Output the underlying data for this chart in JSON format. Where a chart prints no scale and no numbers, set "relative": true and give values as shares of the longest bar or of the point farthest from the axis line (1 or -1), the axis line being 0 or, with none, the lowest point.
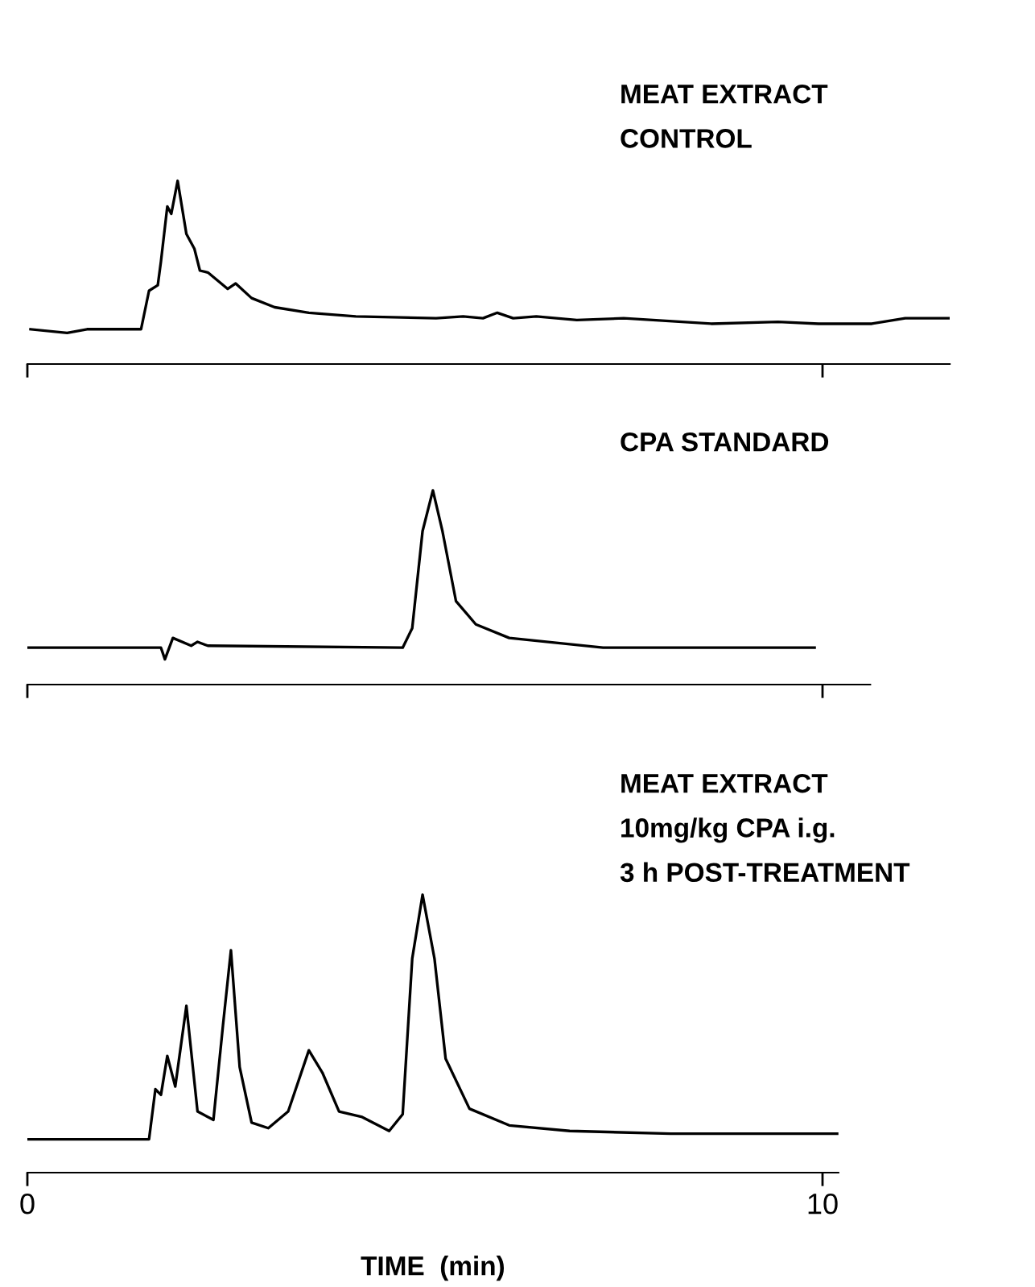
{
  "chart_data": [
    {
      "type": "line",
      "title": "MEAT EXTRACT\nCONTROL",
      "relative": true,
      "color": "#000000",
      "xlim": [
        0,
        11.6
      ],
      "xticks": [
        0,
        10
      ],
      "tick_labels": false,
      "grid": false,
      "legend": false,
      "x": [
        0.04,
        0.5,
        0.75,
        1.43,
        1.53,
        1.64,
        1.68,
        1.76,
        1.81,
        1.89,
        2.0,
        2.1,
        2.17,
        2.27,
        2.52,
        2.62,
        2.82,
        3.11,
        3.54,
        4.13,
        5.14,
        5.48,
        5.73,
        5.91,
        6.11,
        6.4,
        6.91,
        7.5,
        8.6,
        9.44,
        9.95,
        10.62,
        11.04,
        11.6
      ],
      "values": [
        0.19,
        0.17,
        0.19,
        0.19,
        0.4,
        0.43,
        0.56,
        0.86,
        0.82,
        1.0,
        0.71,
        0.63,
        0.51,
        0.5,
        0.41,
        0.44,
        0.36,
        0.31,
        0.28,
        0.26,
        0.25,
        0.26,
        0.25,
        0.28,
        0.25,
        0.26,
        0.24,
        0.25,
        0.22,
        0.23,
        0.22,
        0.22,
        0.25,
        0.25
      ]
    },
    {
      "type": "line",
      "title": "CPA STANDARD",
      "relative": true,
      "color": "#000000",
      "xlim": [
        0,
        10.6
      ],
      "xticks": [
        0,
        10
      ],
      "tick_labels": false,
      "grid": false,
      "legend": false,
      "x": [
        0.0,
        1.68,
        1.73,
        1.83,
        2.06,
        2.14,
        2.27,
        4.72,
        4.84,
        4.97,
        5.1,
        5.22,
        5.39,
        5.64,
        6.06,
        7.24,
        9.9
      ],
      "values": [
        0.19,
        0.19,
        0.13,
        0.24,
        0.2,
        0.22,
        0.2,
        0.19,
        0.29,
        0.79,
        1.0,
        0.79,
        0.43,
        0.31,
        0.24,
        0.19,
        0.19
      ]
    },
    {
      "type": "line",
      "title": "MEAT EXTRACT\n10mg/kg CPA i.g.\n3 h POST-TREATMENT",
      "xlabel": "TIME  (min)",
      "relative": true,
      "color": "#000000",
      "xlim": [
        0,
        10.2
      ],
      "xticks": [
        0,
        10
      ],
      "grid": false,
      "legend": false,
      "x": [
        0.0,
        1.43,
        1.53,
        1.61,
        1.68,
        1.76,
        1.86,
        2.0,
        2.14,
        2.34,
        2.46,
        2.56,
        2.67,
        2.82,
        3.03,
        3.28,
        3.54,
        3.71,
        3.92,
        4.21,
        4.55,
        4.72,
        4.84,
        4.97,
        5.12,
        5.26,
        5.56,
        6.06,
        6.82,
        8.09,
        10.2
      ],
      "values": [
        0.12,
        0.12,
        0.12,
        0.3,
        0.28,
        0.42,
        0.31,
        0.6,
        0.22,
        0.19,
        0.53,
        0.8,
        0.38,
        0.18,
        0.16,
        0.22,
        0.44,
        0.36,
        0.22,
        0.2,
        0.15,
        0.21,
        0.77,
        1.0,
        0.77,
        0.41,
        0.23,
        0.17,
        0.15,
        0.14,
        0.14
      ]
    }
  ]
}
